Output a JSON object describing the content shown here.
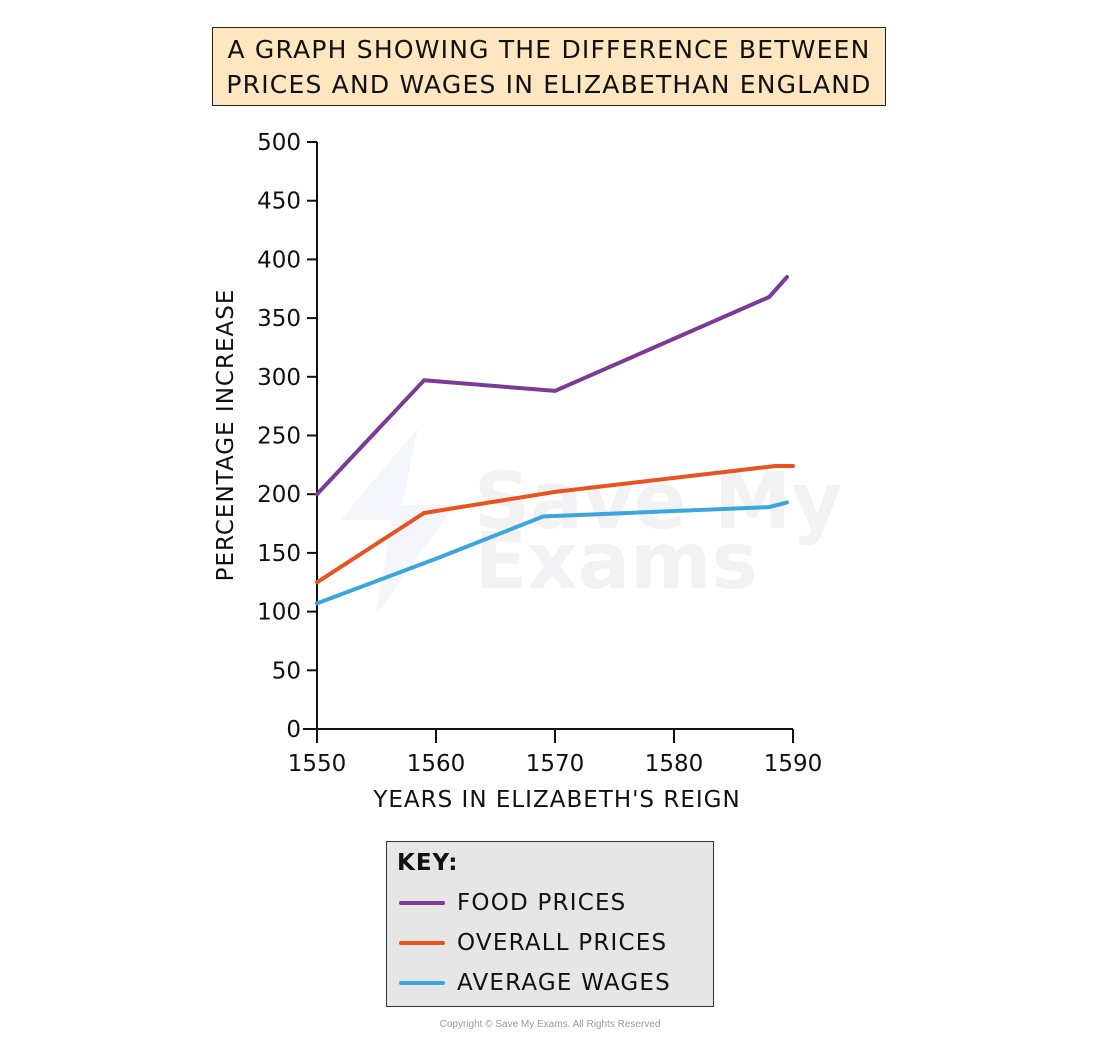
{
  "title": {
    "line1": "A GRAPH SHOWING THE DIFFERENCE BETWEEN",
    "line2": "PRICES AND WAGES IN ELIZABETHAN ENGLAND"
  },
  "axes": {
    "xlabel": "YEARS IN ELIZABETH'S REIGN",
    "ylabel": "PERCENTAGE INCREASE",
    "x_ticks": [
      "1550",
      "1560",
      "1570",
      "1580",
      "1590"
    ],
    "y_ticks": [
      "0",
      "50",
      "100",
      "150",
      "200",
      "250",
      "300",
      "350",
      "400",
      "450",
      "500"
    ]
  },
  "watermark": {
    "line1": "Save My",
    "line2": "Exams"
  },
  "key": {
    "title": "KEY:",
    "items": [
      {
        "label": "FOOD PRICES",
        "color": "#7b3a96"
      },
      {
        "label": "OVERALL PRICES",
        "color": "#e8531f"
      },
      {
        "label": "AVERAGE WAGES",
        "color": "#3aa6dc"
      }
    ]
  },
  "copyright": "Copyright © Save My Exams. All Rights Reserved",
  "chart_data": {
    "type": "line",
    "title": "A GRAPH SHOWING THE DIFFERENCE BETWEEN PRICES AND WAGES IN ELIZABETHAN ENGLAND",
    "xlabel": "YEARS IN ELIZABETH'S REIGN",
    "ylabel": "PERCENTAGE INCREASE",
    "xlim": [
      1550,
      1590
    ],
    "ylim": [
      0,
      500
    ],
    "x_ticks": [
      1550,
      1560,
      1570,
      1580,
      1590
    ],
    "y_ticks": [
      0,
      50,
      100,
      150,
      200,
      250,
      300,
      350,
      400,
      450,
      500
    ],
    "grid": false,
    "legend_position": "below",
    "series": [
      {
        "name": "FOOD PRICES",
        "color": "#7b3a96",
        "x": [
          1550,
          1559,
          1570,
          1588,
          1589.5
        ],
        "y": [
          200,
          297,
          288,
          368,
          385
        ]
      },
      {
        "name": "OVERALL PRICES",
        "color": "#e8531f",
        "x": [
          1550,
          1559,
          1570,
          1588.5,
          1590
        ],
        "y": [
          125,
          184,
          202,
          224,
          224
        ]
      },
      {
        "name": "AVERAGE WAGES",
        "color": "#3aa6dc",
        "x": [
          1550,
          1560,
          1569,
          1588,
          1589.5
        ],
        "y": [
          107,
          145,
          181,
          189,
          193
        ]
      }
    ]
  }
}
